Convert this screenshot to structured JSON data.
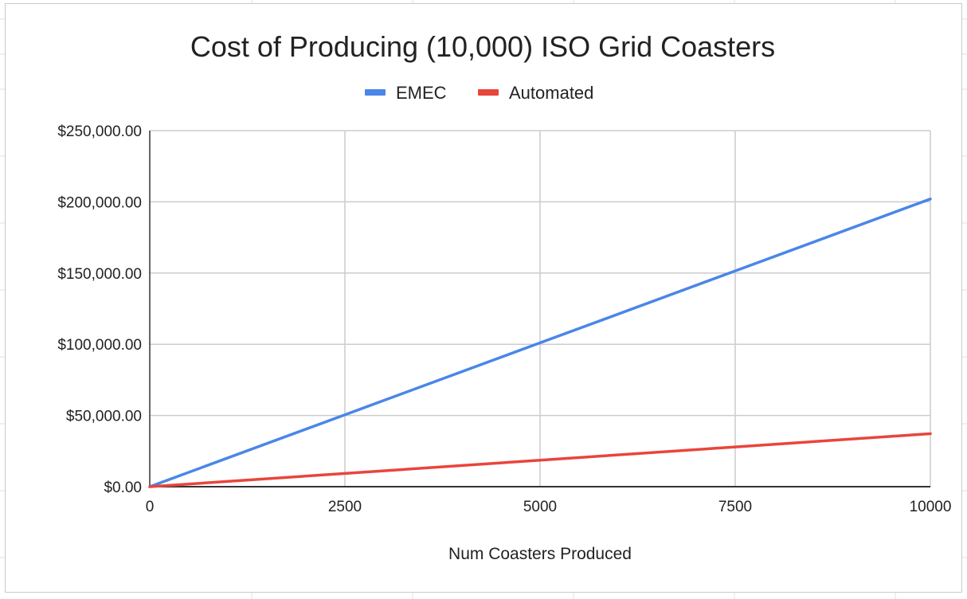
{
  "chart_data": {
    "type": "line",
    "title": "Cost of Producing (10,000) ISO Grid Coasters",
    "xlabel": "Num Coasters Produced",
    "ylabel": "",
    "x": [
      0,
      2500,
      5000,
      7500,
      10000
    ],
    "xlim": [
      0,
      10000
    ],
    "ylim": [
      0,
      250000
    ],
    "x_ticks": [
      "0",
      "2500",
      "5000",
      "7500",
      "10000"
    ],
    "y_ticks": [
      "$0.00",
      "$50,000.00",
      "$100,000.00",
      "$150,000.00",
      "$200,000.00",
      "$250,000.00"
    ],
    "y_tick_values": [
      0,
      50000,
      100000,
      150000,
      200000,
      250000
    ],
    "x_tick_values": [
      0,
      2500,
      5000,
      7500,
      10000
    ],
    "grid": true,
    "legend_position": "top",
    "series": [
      {
        "name": "EMEC",
        "color": "#4a86e8",
        "values": [
          0,
          50500,
          101000,
          151500,
          202000
        ]
      },
      {
        "name": "Automated",
        "color": "#e8453c",
        "values": [
          0,
          9300,
          18600,
          27900,
          37200
        ]
      }
    ]
  }
}
